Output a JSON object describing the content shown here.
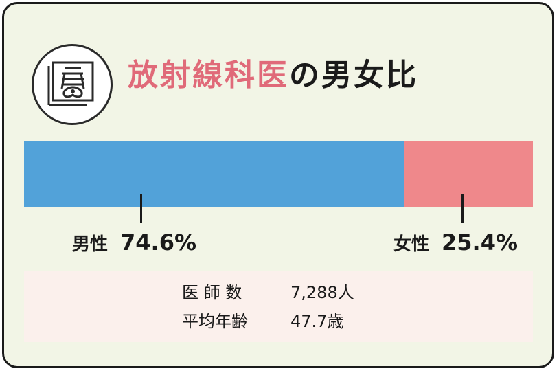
{
  "title": {
    "accent": "放射線科医",
    "rest": "の男女比"
  },
  "icon": "xray-icon",
  "colors": {
    "male": "#52a2d9",
    "female": "#ef888b",
    "accent": "#e06a79",
    "card_bg": "#f2f5e6",
    "stats_bg": "#fbf0ec"
  },
  "chart_data": {
    "type": "bar",
    "categories": [
      "男性",
      "女性"
    ],
    "values": [
      74.6,
      25.4
    ],
    "value_labels": [
      "74.6%",
      "25.4%"
    ],
    "stacked": true,
    "orientation": "horizontal",
    "ylim": [
      0,
      100
    ]
  },
  "stats": [
    {
      "label": "医 師 数",
      "value": "7,288人"
    },
    {
      "label": "平均年齢",
      "value": "47.7歳"
    }
  ]
}
